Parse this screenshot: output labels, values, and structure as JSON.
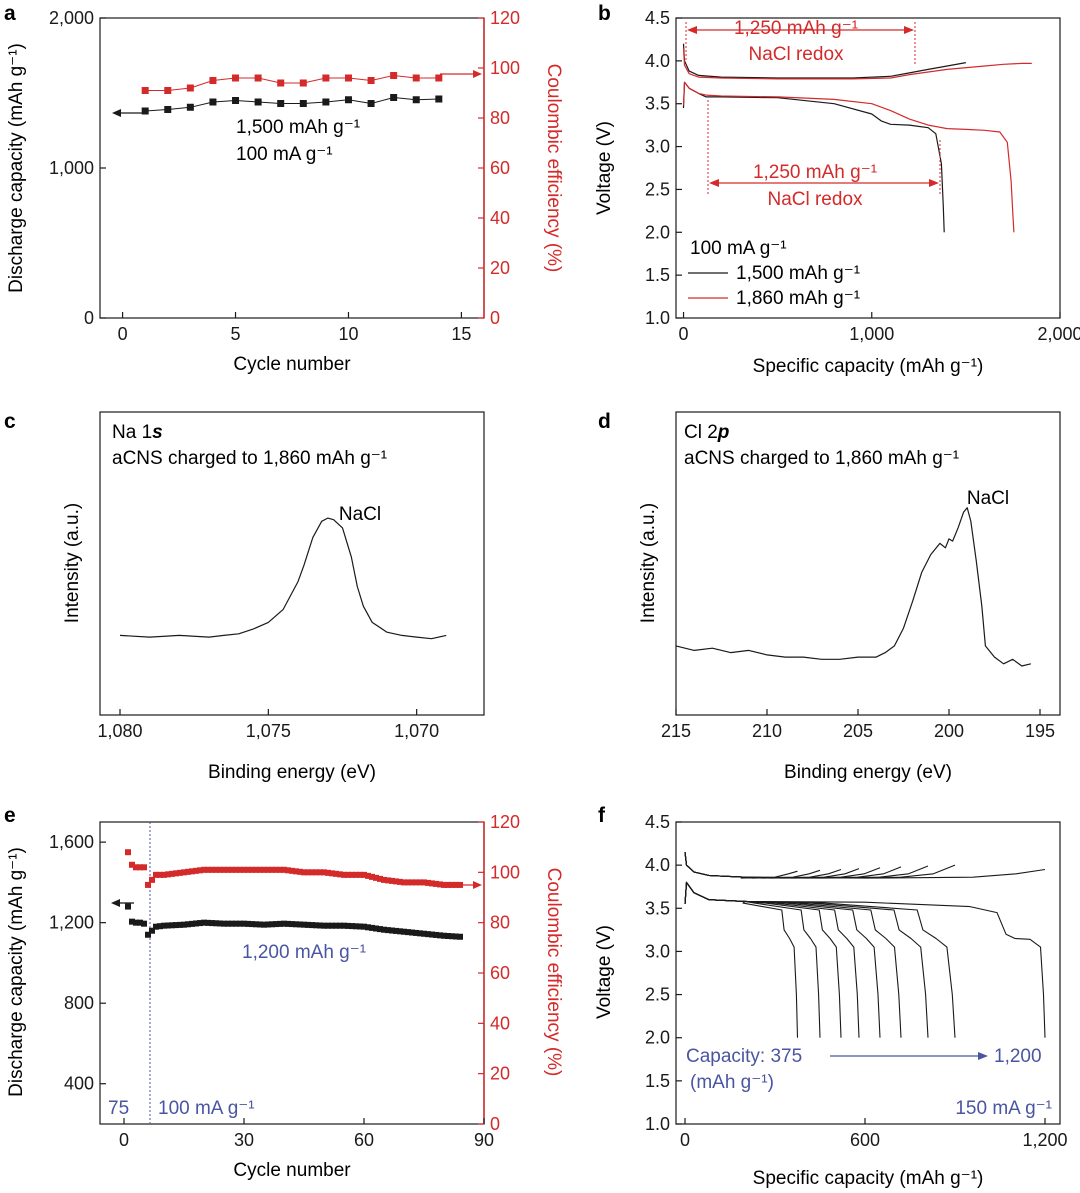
{
  "colors": {
    "black": "#1a1a1a",
    "red": "#d42a2a",
    "blue": "#4a55a2"
  },
  "panels": {
    "a": {
      "label": "a",
      "xlabel": "Cycle number",
      "ylabel": "Discharge capacity (mAh g⁻¹)",
      "y2label": "Coulombic efficiency (%)",
      "xticks": [
        "0",
        "5",
        "10",
        "15"
      ],
      "yticks": [
        "0",
        "1,000",
        "2,000"
      ],
      "y2ticks": [
        "0",
        "20",
        "40",
        "60",
        "80",
        "100",
        "120"
      ],
      "annot1": "1,500 mAh g⁻¹",
      "annot2": "100 mA g⁻¹"
    },
    "b": {
      "label": "b",
      "xlabel": "Specific capacity (mAh g⁻¹)",
      "ylabel": "Voltage (V)",
      "xticks": [
        "0",
        "1,000",
        "2,000"
      ],
      "yticks": [
        "1.0",
        "1.5",
        "2.0",
        "2.5",
        "3.0",
        "3.5",
        "4.0",
        "4.5"
      ],
      "annot_top1": "1,250 mAh g⁻¹",
      "annot_top2": "NaCl redox",
      "annot_bot1": "1,250 mAh g⁻¹",
      "annot_bot2": "NaCl redox",
      "legend_title": "100 mA g⁻¹",
      "legend1": "1,500 mAh g⁻¹",
      "legend2": "1,860 mAh g⁻¹"
    },
    "c": {
      "label": "c",
      "xlabel": "Binding energy (eV)",
      "ylabel": "Intensity (a.u.)",
      "xticks": [
        "1,080",
        "1,075",
        "1,070"
      ],
      "title1_pre": "Na 1",
      "title1_em": "s",
      "title2": "aCNS charged to 1,860 mAh g⁻¹",
      "peak": "NaCl"
    },
    "d": {
      "label": "d",
      "xlabel": "Binding energy (eV)",
      "ylabel": "Intensity (a.u.)",
      "xticks": [
        "215",
        "210",
        "205",
        "200",
        "195"
      ],
      "title1_pre": "Cl 2",
      "title1_em": "p",
      "title2": "aCNS charged to 1,860 mAh g⁻¹",
      "peak": "NaCl"
    },
    "e": {
      "label": "e",
      "xlabel": "Cycle number",
      "ylabel": "Discharge capacity (mAh g⁻¹)",
      "y2label": "Coulombic efficiency (%)",
      "xticks": [
        "0",
        "30",
        "60",
        "90"
      ],
      "yticks": [
        "400",
        "800",
        "1,200",
        "1,600"
      ],
      "y2ticks": [
        "0",
        "20",
        "40",
        "60",
        "80",
        "100",
        "120"
      ],
      "annot": "1,200 mAh g⁻¹",
      "left_rate": "75",
      "right_rate": "100 mA g⁻¹"
    },
    "f": {
      "label": "f",
      "xlabel": "Specific capacity (mAh g⁻¹)",
      "ylabel": "Voltage (V)",
      "xticks": [
        "0",
        "600",
        "1,200"
      ],
      "yticks": [
        "1.0",
        "1.5",
        "2.0",
        "2.5",
        "3.0",
        "3.5",
        "4.0",
        "4.5"
      ],
      "cap_label": "Capacity: 375",
      "cap_unit": "(mAh g⁻¹)",
      "cap_end": "1,200",
      "rate": "150 mA g⁻¹"
    }
  },
  "chart_data": [
    {
      "panel": "a",
      "type": "scatter",
      "xlim": [
        -1,
        16
      ],
      "ylim": [
        0,
        2000
      ],
      "y2lim": [
        0,
        120
      ],
      "x": [
        1,
        2,
        3,
        4,
        5,
        6,
        7,
        8,
        9,
        10,
        11,
        12,
        13,
        14
      ],
      "series": [
        {
          "axis": "left",
          "values": [
            1380,
            1390,
            1405,
            1440,
            1450,
            1440,
            1430,
            1430,
            1440,
            1455,
            1430,
            1470,
            1455,
            1460
          ]
        },
        {
          "axis": "right",
          "values": [
            91,
            91,
            92,
            95,
            96,
            96,
            94,
            94,
            96,
            96,
            95,
            97,
            96,
            96
          ]
        }
      ]
    },
    {
      "panel": "b",
      "type": "line",
      "xlim": [
        -40,
        2000
      ],
      "ylim": [
        1.0,
        4.5
      ],
      "series": [
        {
          "name": "1,500 mAh g⁻¹",
          "curve": "charge",
          "x": [
            0,
            5,
            30,
            80,
            200,
            500,
            900,
            1100,
            1200,
            1300,
            1400,
            1500
          ],
          "y": [
            4.2,
            4.0,
            3.88,
            3.83,
            3.81,
            3.8,
            3.8,
            3.82,
            3.86,
            3.9,
            3.94,
            3.98
          ]
        },
        {
          "name": "1,500 mAh g⁻¹",
          "curve": "discharge",
          "x": [
            0,
            5,
            30,
            80,
            120,
            200,
            500,
            800,
            1000,
            1050,
            1100,
            1200,
            1300,
            1340,
            1370,
            1380,
            1385
          ],
          "y": [
            3.45,
            3.75,
            3.68,
            3.62,
            3.58,
            3.58,
            3.57,
            3.5,
            3.38,
            3.3,
            3.26,
            3.25,
            3.22,
            3.15,
            2.8,
            2.3,
            2.0
          ]
        },
        {
          "name": "1,860 mAh g⁻¹",
          "curve": "charge",
          "x": [
            0,
            5,
            30,
            80,
            200,
            500,
            900,
            1100,
            1200,
            1400,
            1600,
            1700,
            1800,
            1850
          ],
          "y": [
            4.15,
            3.95,
            3.85,
            3.81,
            3.8,
            3.79,
            3.79,
            3.8,
            3.84,
            3.9,
            3.94,
            3.96,
            3.97,
            3.97
          ]
        },
        {
          "name": "1,860 mAh g⁻¹",
          "curve": "discharge",
          "x": [
            0,
            5,
            30,
            80,
            120,
            200,
            500,
            800,
            1000,
            1100,
            1200,
            1300,
            1400,
            1500,
            1600,
            1680,
            1720,
            1740,
            1750,
            1755
          ],
          "y": [
            3.48,
            3.75,
            3.68,
            3.62,
            3.6,
            3.59,
            3.58,
            3.55,
            3.5,
            3.42,
            3.32,
            3.25,
            3.21,
            3.2,
            3.19,
            3.17,
            3.05,
            2.6,
            2.2,
            2.0
          ]
        }
      ]
    },
    {
      "panel": "c",
      "type": "line",
      "xlim": [
        1080,
        1068
      ],
      "ylim": [
        0,
        1
      ],
      "series": [
        {
          "x": [
            1080,
            1079,
            1078,
            1077,
            1076.5,
            1076,
            1075.5,
            1075,
            1074.5,
            1074,
            1073.8,
            1073.5,
            1073.2,
            1073,
            1072.8,
            1072.5,
            1072.2,
            1072,
            1071.8,
            1071.5,
            1071,
            1070.5,
            1070,
            1069.5,
            1069
          ],
          "y": [
            0.12,
            0.11,
            0.12,
            0.11,
            0.12,
            0.13,
            0.16,
            0.2,
            0.28,
            0.45,
            0.55,
            0.72,
            0.82,
            0.84,
            0.83,
            0.78,
            0.6,
            0.42,
            0.3,
            0.2,
            0.14,
            0.12,
            0.11,
            0.1,
            0.12
          ]
        }
      ]
    },
    {
      "panel": "d",
      "type": "line",
      "xlim": [
        215,
        195
      ],
      "ylim": [
        0,
        1
      ],
      "series": [
        {
          "x": [
            215,
            214,
            213,
            212,
            211,
            210,
            209,
            208,
            207,
            206,
            205,
            204,
            203.5,
            203,
            202.5,
            202,
            201.5,
            201,
            200.5,
            200.2,
            200,
            199.8,
            199.5,
            199.2,
            199,
            198.8,
            198.5,
            198.2,
            198,
            197.5,
            197,
            196.5,
            196,
            195.5
          ],
          "y": [
            0.22,
            0.2,
            0.21,
            0.19,
            0.2,
            0.18,
            0.17,
            0.17,
            0.16,
            0.16,
            0.17,
            0.17,
            0.19,
            0.22,
            0.3,
            0.42,
            0.55,
            0.63,
            0.68,
            0.66,
            0.7,
            0.69,
            0.75,
            0.82,
            0.84,
            0.78,
            0.6,
            0.4,
            0.22,
            0.17,
            0.14,
            0.16,
            0.13,
            0.14
          ]
        }
      ]
    },
    {
      "panel": "e",
      "type": "scatter",
      "xlim": [
        -6,
        90
      ],
      "ylim": [
        200,
        1700
      ],
      "y2lim": [
        0,
        120
      ],
      "x_dashed": 5,
      "series": [
        {
          "axis": "left",
          "x": [
            1,
            2,
            3,
            4,
            5,
            6,
            8,
            10,
            15,
            20,
            25,
            30,
            35,
            40,
            45,
            50,
            55,
            60,
            65,
            70,
            75,
            80,
            84
          ],
          "values": [
            1280,
            1205,
            1200,
            1200,
            1195,
            1140,
            1180,
            1185,
            1190,
            1200,
            1195,
            1195,
            1190,
            1195,
            1190,
            1185,
            1185,
            1180,
            1165,
            1155,
            1145,
            1135,
            1130
          ]
        },
        {
          "axis": "right",
          "x": [
            1,
            2,
            3,
            4,
            5,
            6,
            8,
            10,
            15,
            20,
            25,
            30,
            35,
            40,
            45,
            50,
            55,
            60,
            65,
            70,
            75,
            80,
            84
          ],
          "values": [
            108,
            103,
            102,
            102,
            102,
            95,
            99,
            99,
            100,
            101,
            101,
            101,
            101,
            101,
            100,
            100,
            99,
            99,
            97,
            96,
            96,
            95,
            95
          ]
        }
      ]
    },
    {
      "panel": "f",
      "type": "line",
      "xlim": [
        -30,
        1250
      ],
      "ylim": [
        1.0,
        4.5
      ],
      "series": [
        {
          "capacity": 375
        },
        {
          "capacity": 450
        },
        {
          "capacity": 520
        },
        {
          "capacity": 580
        },
        {
          "capacity": 650
        },
        {
          "capacity": 720
        },
        {
          "capacity": 810
        },
        {
          "capacity": 900
        },
        {
          "capacity": 1200
        }
      ]
    }
  ]
}
